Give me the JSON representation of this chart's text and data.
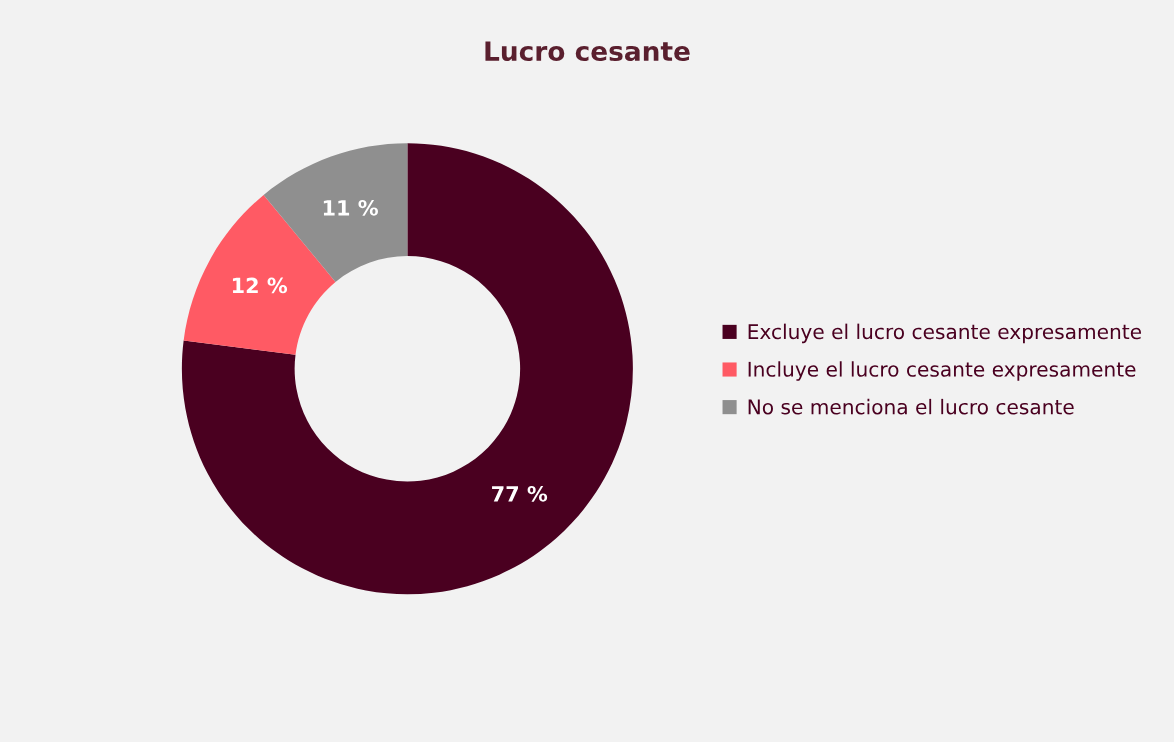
{
  "chart_data": {
    "type": "donut",
    "title": "Lucro cesante",
    "categories": [
      "Excluye el lucro cesante expresamente",
      "Incluye el lucro cesante expresamente",
      "No se menciona el lucro cesante"
    ],
    "values": [
      77,
      12,
      11
    ],
    "colors": [
      "#4a0020",
      "#ff5a64",
      "#8f8f8f"
    ],
    "value_labels": [
      "77 %",
      "12 %",
      "11 %"
    ],
    "legend": "right"
  }
}
